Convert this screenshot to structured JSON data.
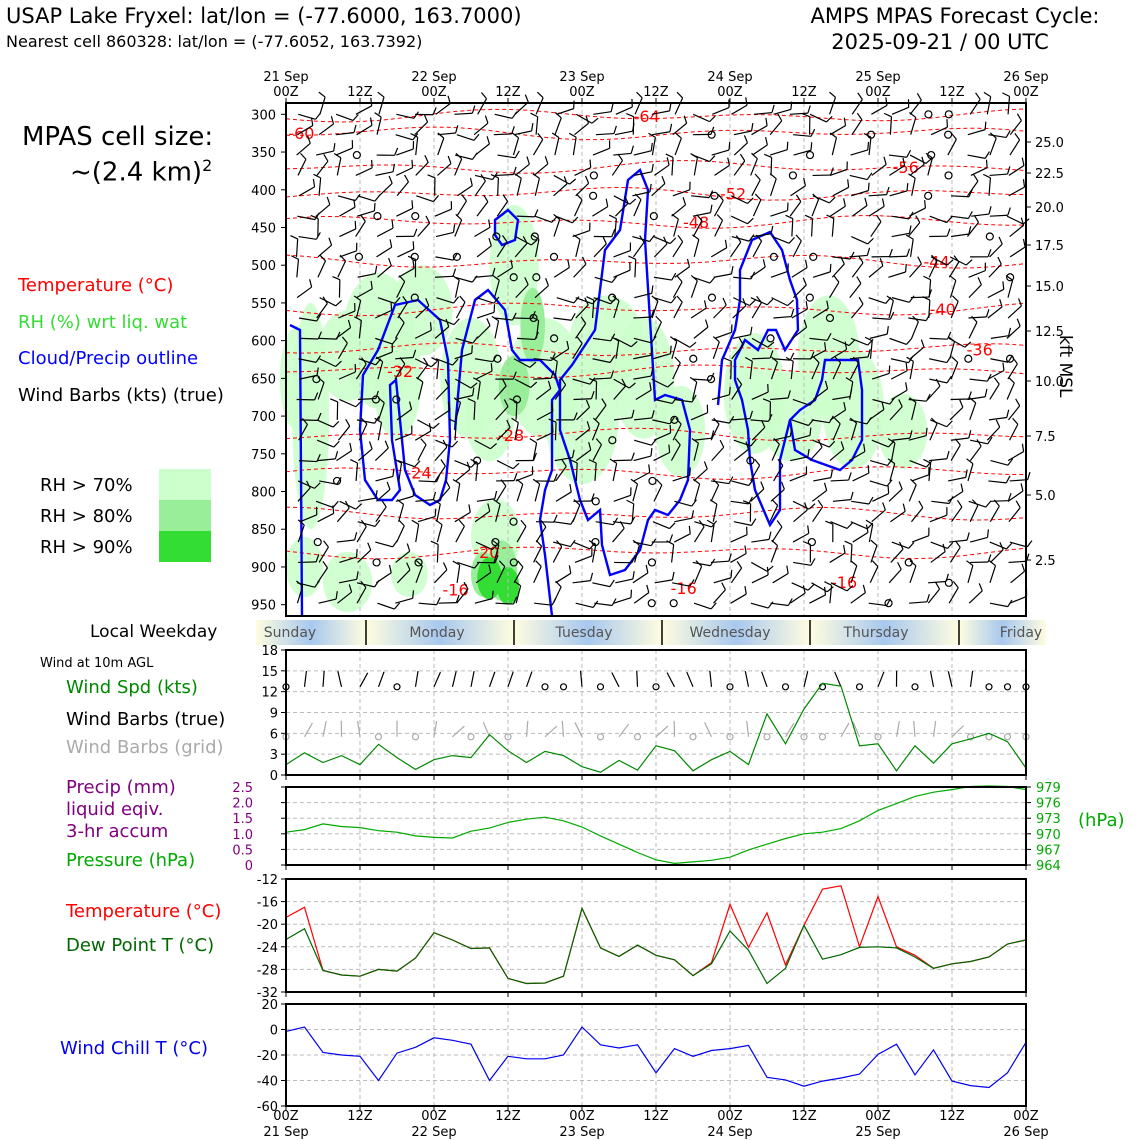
{
  "header": {
    "left_line1": "USAP Lake Fryxel: lat/lon = (-77.6000, 163.7000)",
    "left_line2": "Nearest cell 860328: lat/lon = (-77.6052, 163.7392)",
    "right_line1": "AMPS MPAS Forecast Cycle:",
    "right_line2": "2025-09-21 / 00 UTC"
  },
  "cell_size": {
    "line1": "MPAS cell size:",
    "line2_prefix": "~(2.4 km)",
    "line2_sup": "2"
  },
  "legend": {
    "temperature": "Temperature (°C)",
    "rh": "RH (%) wrt liq. wat",
    "cloud": "Cloud/Precip outline",
    "wind": "Wind Barbs (kts) (true)",
    "rh70": "RH > 70%",
    "rh80": "RH > 80%",
    "rh90": "RH > 90%"
  },
  "colors": {
    "temperature": "#ff0000",
    "rh70": "#ccffcc",
    "rh80": "#99ee99",
    "rh90": "#33dd33",
    "cloud": "#0000ff",
    "wind_speed": "#008800",
    "wind_grid": "#aaaaaa",
    "precip": "#800080",
    "pressure": "#00aa00",
    "dewpoint": "#006600",
    "windchill": "#0000ee"
  },
  "time_axis": {
    "ticks": [
      "00Z",
      "12Z",
      "00Z",
      "12Z",
      "00Z",
      "12Z",
      "00Z",
      "12Z",
      "00Z",
      "12Z",
      "00Z"
    ],
    "dates": [
      "21 Sep",
      "",
      "22 Sep",
      "",
      "23 Sep",
      "",
      "24 Sep",
      "",
      "25 Sep",
      "",
      "26 Sep"
    ]
  },
  "weekday_label": "Local Weekday",
  "weekdays": [
    "Sunday",
    "Monday",
    "Tuesday",
    "Wednesday",
    "Thursday",
    "Friday"
  ],
  "wind10_label": "Wind at 10m AGL",
  "lower_legends": {
    "wind_spd": "Wind Spd (kts)",
    "wind_barbs": "Wind Barbs (true)",
    "wind_grid": "Wind Barbs (grid)",
    "precip_1": "Precip (mm)",
    "precip_2": "liquid eqiv.",
    "precip_3": "3-hr accum",
    "pressure": "Pressure (hPa)",
    "hpa": "(hPa)",
    "temp": "Temperature (°C)",
    "dew": "Dew Point T (°C)",
    "windchill": "Wind Chill T (°C)"
  },
  "chart_data": [
    {
      "type": "heatmap",
      "name": "time-height cross section",
      "pressure_levels": [
        300,
        350,
        400,
        450,
        500,
        550,
        600,
        650,
        700,
        750,
        800,
        850,
        900,
        950
      ],
      "kft_ticks": [
        25.0,
        22.5,
        20.0,
        17.5,
        15.0,
        12.5,
        10.0,
        7.5,
        5.0,
        2.5
      ],
      "kft_label": "kft MSL",
      "temperature_contour_labels": [
        {
          "value": "-64",
          "hour": 58,
          "p": 302
        },
        {
          "value": "-60",
          "hour": 2,
          "p": 325
        },
        {
          "value": "-56",
          "hour": 100,
          "p": 370
        },
        {
          "value": "-52",
          "hour": 72,
          "p": 405
        },
        {
          "value": "-48",
          "hour": 66,
          "p": 443
        },
        {
          "value": "-44",
          "hour": 105,
          "p": 495
        },
        {
          "value": "-40",
          "hour": 106,
          "p": 558
        },
        {
          "value": "-36",
          "hour": 112,
          "p": 612
        },
        {
          "value": "-32",
          "hour": 18,
          "p": 640
        },
        {
          "value": "-28",
          "hour": 36,
          "p": 725
        },
        {
          "value": "-24",
          "hour": 21,
          "p": 775
        },
        {
          "value": "-20",
          "hour": 32,
          "p": 880
        },
        {
          "value": "-16",
          "hour": 27,
          "p": 930
        },
        {
          "value": "-16",
          "hour": 64,
          "p": 928
        },
        {
          "value": "-16",
          "hour": 90,
          "p": 920
        }
      ]
    },
    {
      "type": "line",
      "name": "10m wind",
      "x_hours": [
        0,
        3,
        6,
        9,
        12,
        15,
        18,
        21,
        24,
        27,
        30,
        33,
        36,
        39,
        42,
        45,
        48,
        51,
        54,
        57,
        60,
        63,
        66,
        69,
        72,
        75,
        78,
        81,
        84,
        87,
        90,
        93,
        96,
        99,
        102,
        105,
        108,
        111,
        114,
        117,
        120
      ],
      "series": [
        {
          "name": "Wind Spd (kts)",
          "values": [
            1.5,
            3.2,
            1.8,
            2.8,
            1.5,
            4.4,
            2.5,
            0.8,
            2.2,
            2.8,
            2.5,
            5.8,
            3.5,
            1.8,
            3.4,
            2.8,
            1.2,
            0.4,
            2.1,
            0.7,
            4.2,
            3.5,
            0.6,
            2.2,
            3.4,
            1.5,
            8.8,
            4.5,
            9.5,
            13.2,
            12.8,
            4.2,
            4.5,
            0.6,
            4.2,
            1.7,
            4.5,
            5.2,
            6.0,
            4.8,
            1.0
          ]
        }
      ],
      "ylim": [
        0,
        18
      ],
      "yticks": [
        0,
        3,
        6,
        9,
        12,
        15,
        18
      ]
    },
    {
      "type": "line",
      "name": "precip and pressure",
      "x_hours": [
        0,
        3,
        6,
        9,
        12,
        15,
        18,
        21,
        24,
        27,
        30,
        33,
        36,
        39,
        42,
        45,
        48,
        51,
        54,
        57,
        60,
        63,
        66,
        69,
        72,
        75,
        78,
        81,
        84,
        87,
        90,
        93,
        96,
        99,
        102,
        105,
        108,
        111,
        114,
        117,
        120
      ],
      "series": [
        {
          "name": "Pressure (hPa)",
          "values": [
            970.3,
            970.8,
            971.9,
            971.4,
            971.2,
            970.6,
            970.3,
            969.6,
            969.3,
            969.2,
            970.5,
            971.1,
            972.2,
            972.8,
            973.2,
            972.5,
            971.3,
            969.6,
            968.0,
            966.4,
            965.0,
            964.3,
            964.6,
            964.9,
            965.5,
            966.9,
            968.0,
            969.1,
            970.0,
            970.3,
            971.0,
            972.5,
            974.5,
            975.8,
            977.2,
            978.0,
            978.5,
            979.1,
            979.2,
            979.1,
            978.5
          ]
        }
      ],
      "ylim": [
        964,
        979
      ],
      "pressure_ticks": [
        979,
        976,
        973,
        970,
        967,
        964
      ],
      "precip_ticks": [
        "0",
        "0.5",
        "1.0",
        "1.5",
        "2.0",
        "2.5"
      ],
      "precip_ylim": [
        0,
        2.5
      ]
    },
    {
      "type": "line",
      "name": "temperature and dewpoint",
      "x_hours": [
        0,
        3,
        6,
        9,
        12,
        15,
        18,
        21,
        24,
        27,
        30,
        33,
        36,
        39,
        42,
        45,
        48,
        51,
        54,
        57,
        60,
        63,
        66,
        69,
        72,
        75,
        78,
        81,
        84,
        87,
        90,
        93,
        96,
        99,
        102,
        105,
        108,
        111,
        114,
        117,
        120
      ],
      "series": [
        {
          "name": "Temperature (°C)",
          "values": [
            -18.8,
            -17.0,
            -28.2,
            -29.0,
            -29.2,
            -28.0,
            -28.3,
            -26.0,
            -21.5,
            -22.8,
            -24.3,
            -24.2,
            -29.6,
            -30.5,
            -30.4,
            -29.2,
            -17.2,
            -24.2,
            -25.7,
            -23.7,
            -25.5,
            -26.3,
            -29.1,
            -26.8,
            -16.5,
            -24.1,
            -18.0,
            -27.2,
            -20.2,
            -13.8,
            -13.2,
            -24.0,
            -15.1,
            -24.0,
            -25.5,
            -27.8,
            -27.0,
            -26.6,
            -25.8,
            -23.5,
            -22.8
          ]
        },
        {
          "name": "Dew Point T (°C)",
          "values": [
            -22.7,
            -20.8,
            -28.2,
            -29.0,
            -29.2,
            -28.0,
            -28.3,
            -26.0,
            -21.5,
            -22.8,
            -24.3,
            -24.2,
            -29.6,
            -30.5,
            -30.4,
            -29.2,
            -17.2,
            -24.2,
            -25.7,
            -23.7,
            -25.5,
            -26.3,
            -29.1,
            -27.0,
            -21.2,
            -24.6,
            -30.5,
            -27.8,
            -20.2,
            -26.2,
            -25.4,
            -24.1,
            -24.0,
            -24.2,
            -25.8,
            -27.8,
            -27.0,
            -26.6,
            -25.8,
            -23.5,
            -22.8
          ]
        }
      ],
      "ylim": [
        -32,
        -12
      ],
      "yticks": [
        -12,
        -16,
        -20,
        -24,
        -28,
        -32
      ]
    },
    {
      "type": "line",
      "name": "wind chill",
      "x_hours": [
        0,
        3,
        6,
        9,
        12,
        15,
        18,
        21,
        24,
        27,
        30,
        33,
        36,
        39,
        42,
        45,
        48,
        51,
        54,
        57,
        60,
        63,
        66,
        69,
        72,
        75,
        78,
        81,
        84,
        87,
        90,
        93,
        96,
        99,
        102,
        105,
        108,
        111,
        114,
        117,
        120
      ],
      "series": [
        {
          "name": "Wind Chill T (°C)",
          "values": [
            -1.5,
            2.0,
            -18.0,
            -20.0,
            -21.0,
            -40.0,
            -18.5,
            -14.0,
            -6.5,
            -8.5,
            -11.5,
            -40.0,
            -21.0,
            -23.0,
            -23.0,
            -20.0,
            2.0,
            -12.0,
            -14.5,
            -12.0,
            -34.0,
            -15.0,
            -21.0,
            -16.5,
            -15.0,
            -12.5,
            -37.5,
            -39.5,
            -44.5,
            -40.5,
            -38.0,
            -35.0,
            -19.5,
            -11.5,
            -35.5,
            -16.0,
            -40.5,
            -44.0,
            -45.5,
            -34.0,
            -10.0
          ]
        }
      ],
      "ylim": [
        -60,
        20
      ],
      "yticks": [
        20,
        0,
        -20,
        -40,
        -60
      ]
    }
  ]
}
